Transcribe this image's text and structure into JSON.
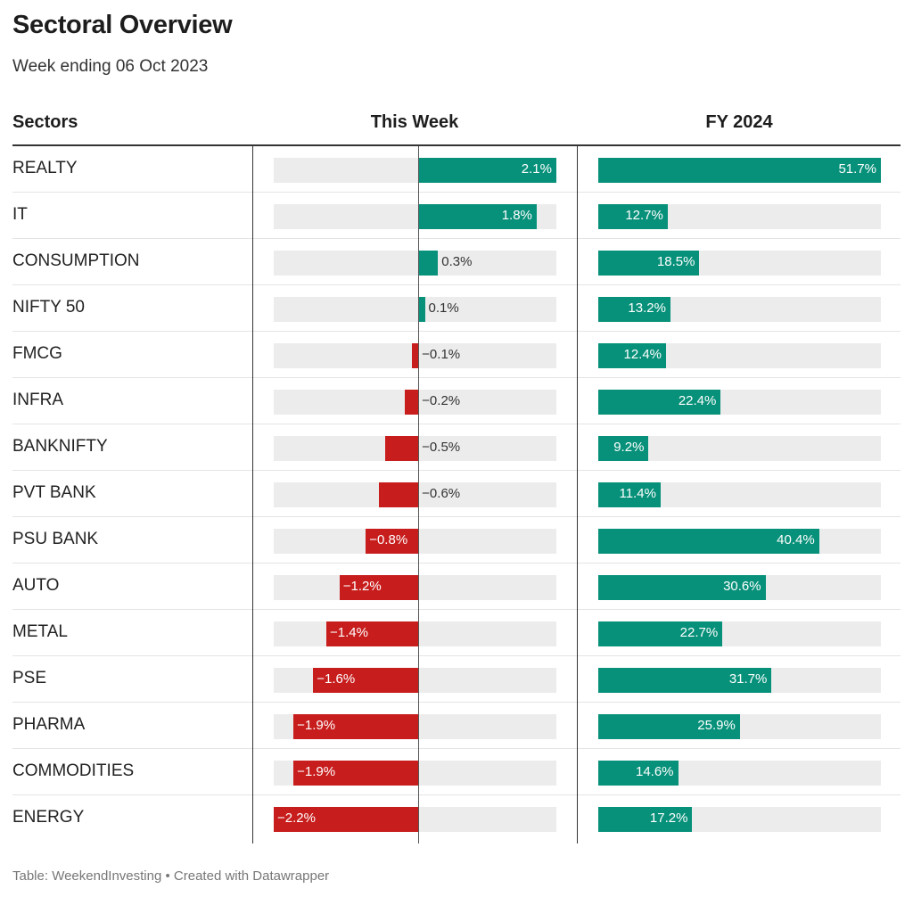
{
  "title": "Sectoral Overview",
  "subtitle": "Week ending 06 Oct 2023",
  "headers": {
    "sectors": "Sectors",
    "week": "This Week",
    "fy": "FY 2024"
  },
  "footer": "Table: WeekendInvesting • Created with Datawrapper",
  "colors": {
    "positive": "#08917a",
    "negative": "#c71e1d",
    "track": "#ececec"
  },
  "chart_data": {
    "type": "table",
    "columns": [
      "Sectors",
      "This Week",
      "FY 2024"
    ],
    "week_range": [
      -2.2,
      2.1
    ],
    "fy_range": [
      0,
      51.7
    ],
    "rows": [
      {
        "sector": "REALTY",
        "week": 2.1,
        "week_label": "2.1%",
        "fy": 51.7,
        "fy_label": "51.7%"
      },
      {
        "sector": "IT",
        "week": 1.8,
        "week_label": "1.8%",
        "fy": 12.7,
        "fy_label": "12.7%"
      },
      {
        "sector": "CONSUMPTION",
        "week": 0.3,
        "week_label": "0.3%",
        "fy": 18.5,
        "fy_label": "18.5%"
      },
      {
        "sector": "NIFTY 50",
        "week": 0.1,
        "week_label": "0.1%",
        "fy": 13.2,
        "fy_label": "13.2%"
      },
      {
        "sector": "FMCG",
        "week": -0.1,
        "week_label": "−0.1%",
        "fy": 12.4,
        "fy_label": "12.4%"
      },
      {
        "sector": "INFRA",
        "week": -0.2,
        "week_label": "−0.2%",
        "fy": 22.4,
        "fy_label": "22.4%"
      },
      {
        "sector": "BANKNIFTY",
        "week": -0.5,
        "week_label": "−0.5%",
        "fy": 9.2,
        "fy_label": "9.2%"
      },
      {
        "sector": "PVT BANK",
        "week": -0.6,
        "week_label": "−0.6%",
        "fy": 11.4,
        "fy_label": "11.4%"
      },
      {
        "sector": "PSU BANK",
        "week": -0.8,
        "week_label": "−0.8%",
        "fy": 40.4,
        "fy_label": "40.4%"
      },
      {
        "sector": "AUTO",
        "week": -1.2,
        "week_label": "−1.2%",
        "fy": 30.6,
        "fy_label": "30.6%"
      },
      {
        "sector": "METAL",
        "week": -1.4,
        "week_label": "−1.4%",
        "fy": 22.7,
        "fy_label": "22.7%"
      },
      {
        "sector": "PSE",
        "week": -1.6,
        "week_label": "−1.6%",
        "fy": 31.7,
        "fy_label": "31.7%"
      },
      {
        "sector": "PHARMA",
        "week": -1.9,
        "week_label": "−1.9%",
        "fy": 25.9,
        "fy_label": "25.9%"
      },
      {
        "sector": "COMMODITIES",
        "week": -1.9,
        "week_label": "−1.9%",
        "fy": 14.6,
        "fy_label": "14.6%"
      },
      {
        "sector": "ENERGY",
        "week": -2.2,
        "week_label": "−2.2%",
        "fy": 17.2,
        "fy_label": "17.2%"
      }
    ]
  }
}
